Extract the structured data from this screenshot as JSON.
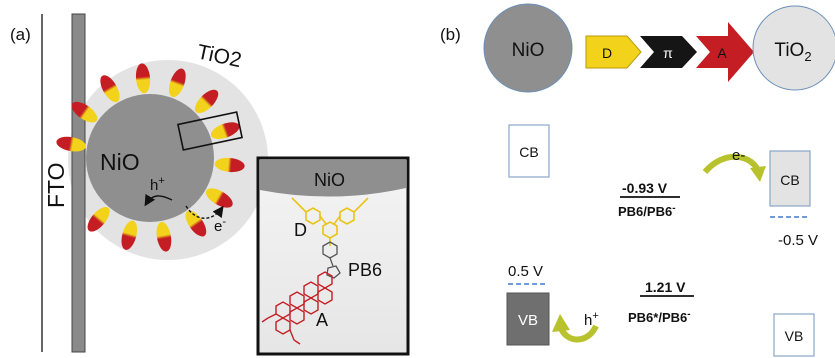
{
  "panel_a": {
    "label": "(a)",
    "fto_label": "FTO",
    "nio_label": "NiO",
    "tio2_label": "TiO",
    "tio2_sub": "2",
    "hole_label": "h",
    "hole_sup": "+",
    "electron_label": "e",
    "electron_sup": "-",
    "inset": {
      "nio_label": "NiO",
      "donor_label": "D",
      "dye_label": "PB6",
      "acceptor_label": "A"
    }
  },
  "panel_b": {
    "label": "(b)",
    "nio_label": "NiO",
    "tio2_label": "TiO",
    "tio2_sub": "2",
    "chain": {
      "donor": "D",
      "bridge": "π",
      "acceptor": "A"
    },
    "nio_cb": "CB",
    "nio_vb": "VB",
    "nio_vb_potential": "0.5 V",
    "tio2_cb": "CB",
    "tio2_vb": "VB",
    "tio2_cb_potential": "-0.5 V",
    "reduction_potential": "-0.93 V",
    "reduction_couple": "PB6/PB6",
    "reduction_couple_sup": "-",
    "excited_potential": "1.21 V",
    "excited_couple": "PB6*/PB6",
    "excited_couple_sup": "-",
    "electron_label": "e-",
    "hole_label": "h",
    "hole_sup": "+"
  },
  "colors": {
    "nio_gray": "#8f8f8f",
    "tio2_shell": "#e3e3e3",
    "donor_yellow": "#f2d21a",
    "acceptor_red": "#c41e24",
    "bridge_black": "#151515",
    "arrow_green": "#b8c22c",
    "dashed_blue": "#5a8fd6"
  }
}
